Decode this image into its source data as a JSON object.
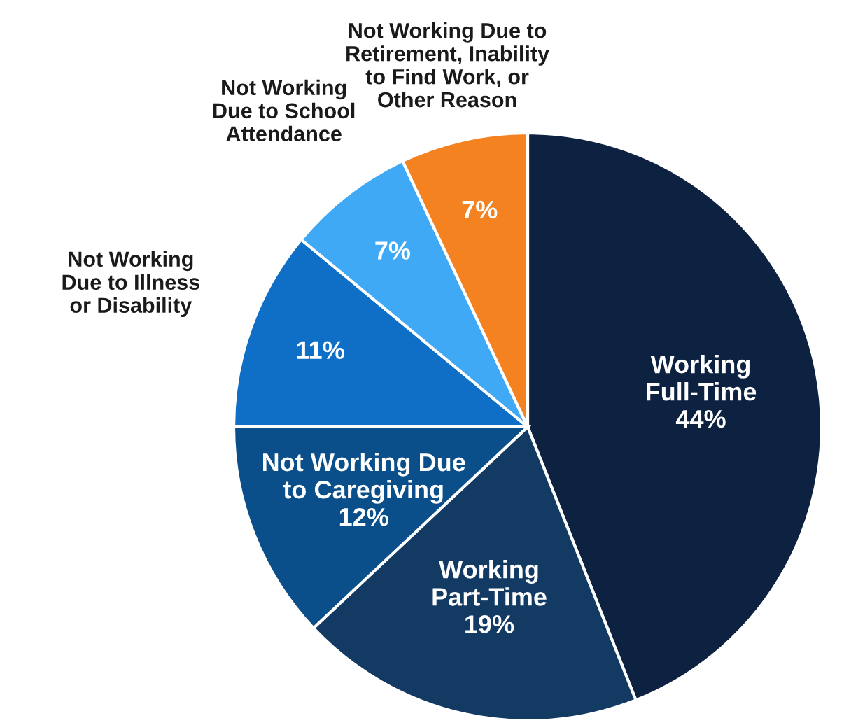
{
  "chart_data": {
    "type": "pie",
    "categories": [
      "Working\nFull-Time",
      "Working\nPart-Time",
      "Not Working Due\nto Caregiving",
      "Not Working\nDue to Illness\nor Disability",
      "Not Working\nDue to School\nAttendance",
      "Not Working Due to\nRetirement, Inability\nto Find Work, or\nOther Reason"
    ],
    "values": [
      44,
      19,
      12,
      11,
      7,
      7
    ],
    "colors": [
      "#0d2240",
      "#133a63",
      "#0a4f8a",
      "#0f6fc6",
      "#3fa9f5",
      "#f58220"
    ],
    "value_labels": [
      "44%",
      "19%",
      "12%",
      "11%",
      "7%",
      "7%"
    ]
  }
}
